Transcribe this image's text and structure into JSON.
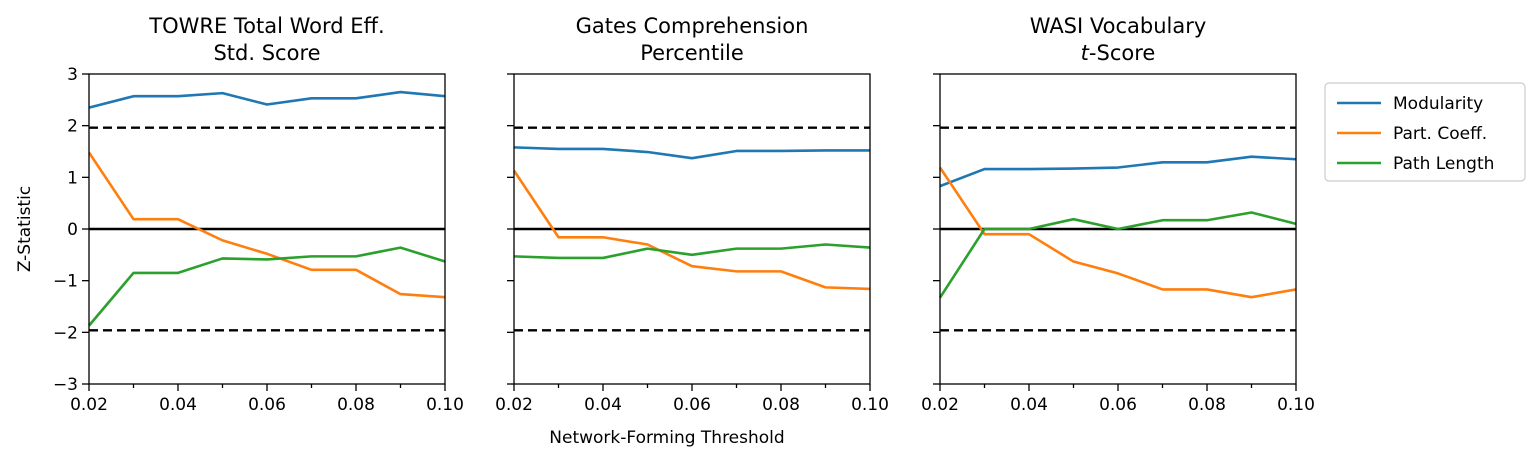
{
  "chart_data": {
    "type": "line",
    "xlabel": "Network-Forming Threshold",
    "ylabel": "Z-Statistic",
    "xlim": [
      0.02,
      0.1
    ],
    "ylim": [
      -3,
      3
    ],
    "x": [
      0.02,
      0.03,
      0.04,
      0.05,
      0.06,
      0.07,
      0.08,
      0.09,
      0.1
    ],
    "xtick_labels": [
      "0.02",
      "0.04",
      "0.06",
      "0.08",
      "0.10"
    ],
    "ytick_labels": [
      "3",
      "2",
      "1",
      "0",
      "−1",
      "−2",
      "−3"
    ],
    "reference_lines": [
      {
        "value": 1.96,
        "style": "dashed"
      },
      {
        "value": 0,
        "style": "solid"
      },
      {
        "value": -1.96,
        "style": "dashed"
      }
    ],
    "series_colors": {
      "Modularity": "#1f77b4",
      "Part. Coeff.": "#ff7f0e",
      "Path Length": "#2ca02c"
    },
    "legend": {
      "position": "outside-right",
      "entries": [
        "Modularity",
        "Part. Coeff.",
        "Path Length"
      ]
    },
    "panels": [
      {
        "title_line1": "TOWRE Total Word Eff.",
        "title_line2": "Std. Score",
        "series": [
          {
            "name": "Modularity",
            "values": [
              2.35,
              2.57,
              2.57,
              2.63,
              2.41,
              2.53,
              2.53,
              2.65,
              2.57
            ]
          },
          {
            "name": "Part. Coeff.",
            "values": [
              1.48,
              0.19,
              0.19,
              -0.22,
              -0.48,
              -0.79,
              -0.79,
              -1.26,
              -1.32
            ]
          },
          {
            "name": "Path Length",
            "values": [
              -1.87,
              -0.85,
              -0.85,
              -0.57,
              -0.59,
              -0.53,
              -0.53,
              -0.36,
              -0.63
            ]
          }
        ]
      },
      {
        "title_line1": "Gates Comprehension",
        "title_line2": "Percentile",
        "series": [
          {
            "name": "Modularity",
            "values": [
              1.58,
              1.55,
              1.55,
              1.49,
              1.37,
              1.51,
              1.51,
              1.52,
              1.52
            ]
          },
          {
            "name": "Part. Coeff.",
            "values": [
              1.13,
              -0.16,
              -0.16,
              -0.3,
              -0.72,
              -0.82,
              -0.82,
              -1.13,
              -1.16
            ]
          },
          {
            "name": "Path Length",
            "values": [
              -0.53,
              -0.56,
              -0.56,
              -0.38,
              -0.5,
              -0.38,
              -0.38,
              -0.3,
              -0.36
            ]
          }
        ]
      },
      {
        "title_line1": "WASI Vocabulary",
        "title_italic": "t",
        "title_line2_rest": "-Score",
        "series": [
          {
            "name": "Modularity",
            "values": [
              0.83,
              1.16,
              1.16,
              1.17,
              1.19,
              1.29,
              1.29,
              1.4,
              1.35
            ]
          },
          {
            "name": "Part. Coeff.",
            "values": [
              1.19,
              -0.1,
              -0.1,
              -0.63,
              -0.86,
              -1.17,
              -1.17,
              -1.32,
              -1.17
            ]
          },
          {
            "name": "Path Length",
            "values": [
              -1.33,
              0.0,
              0.0,
              0.19,
              0.0,
              0.17,
              0.17,
              0.32,
              0.1
            ]
          }
        ]
      }
    ]
  }
}
